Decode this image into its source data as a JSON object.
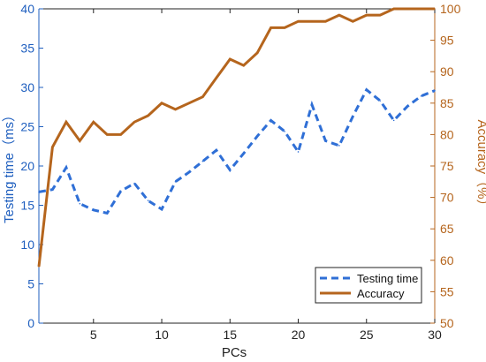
{
  "chart_data": {
    "type": "line",
    "xlabel": "PCs",
    "ylabel_left": "Testing time（ms）",
    "ylabel_right": "Accuracy（%）",
    "xlim": [
      1,
      30
    ],
    "ylim_left": [
      0,
      40
    ],
    "ylim_right": [
      50,
      100
    ],
    "x_ticks": [
      5,
      10,
      15,
      20,
      25,
      30
    ],
    "y_ticks_left": [
      0,
      5,
      10,
      15,
      20,
      25,
      30,
      35,
      40
    ],
    "y_ticks_right": [
      50,
      55,
      60,
      65,
      70,
      75,
      80,
      85,
      90,
      95,
      100
    ],
    "x": [
      1,
      2,
      3,
      4,
      5,
      6,
      7,
      8,
      9,
      10,
      11,
      12,
      13,
      14,
      15,
      16,
      17,
      18,
      19,
      20,
      21,
      22,
      23,
      24,
      25,
      26,
      27,
      28,
      29,
      30
    ],
    "series": [
      {
        "name": "Testing time",
        "axis": "left",
        "style": "dashed",
        "color": "#2f6fd6",
        "values": [
          16.7,
          17.0,
          19.8,
          15.2,
          14.4,
          14.0,
          16.8,
          17.8,
          15.6,
          14.5,
          18.0,
          19.2,
          20.6,
          22.0,
          19.5,
          21.6,
          23.8,
          25.8,
          24.4,
          21.8,
          27.8,
          23.2,
          22.6,
          26.3,
          29.7,
          28.3,
          25.8,
          27.6,
          28.9,
          29.6
        ]
      },
      {
        "name": "Accuracy",
        "axis": "right",
        "style": "solid",
        "color": "#b5651d",
        "values": [
          59,
          78,
          82,
          79,
          82,
          80,
          80,
          82,
          83,
          85,
          84,
          85,
          86,
          89,
          92,
          91,
          93,
          97,
          97,
          98,
          98,
          98,
          99,
          98,
          99,
          99,
          100,
          100,
          100,
          100
        ]
      }
    ],
    "legend": {
      "placement": "bottom-right",
      "entries": [
        "Testing time",
        "Accuracy"
      ]
    },
    "grid": false
  }
}
